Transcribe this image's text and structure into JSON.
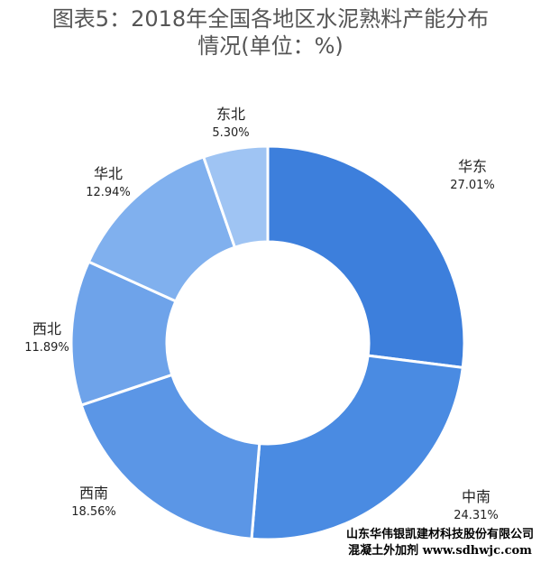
{
  "title_line1": "图表5：2018年全国各地区水泥熟料产能分布",
  "title_line2": "情况(单位：%)",
  "chart_data": {
    "type": "pie",
    "title": "图表5：2018年全国各地区水泥熟料产能分布情况(单位：%)",
    "unit": "%",
    "donut": true,
    "slices": [
      {
        "name": "华东",
        "label": "27.01%",
        "value": 27.01,
        "color": "#3d7fdc"
      },
      {
        "name": "中南",
        "label": "24.31%",
        "value": 24.31,
        "color": "#4a8be2"
      },
      {
        "name": "西南",
        "label": "18.56%",
        "value": 18.56,
        "color": "#5b96e6"
      },
      {
        "name": "西北",
        "label": "11.89%",
        "value": 11.89,
        "color": "#6ea3ea"
      },
      {
        "name": "华北",
        "label": "12.94%",
        "value": 12.94,
        "color": "#80b0ee"
      },
      {
        "name": "东北",
        "label": "5.30%",
        "value": 5.3,
        "color": "#9fc4f3"
      }
    ]
  },
  "watermark": {
    "line1": "山东华伟银凯建材科技股份有限公司",
    "line2": "混凝土外加剂 www.sdhwjc.com"
  }
}
